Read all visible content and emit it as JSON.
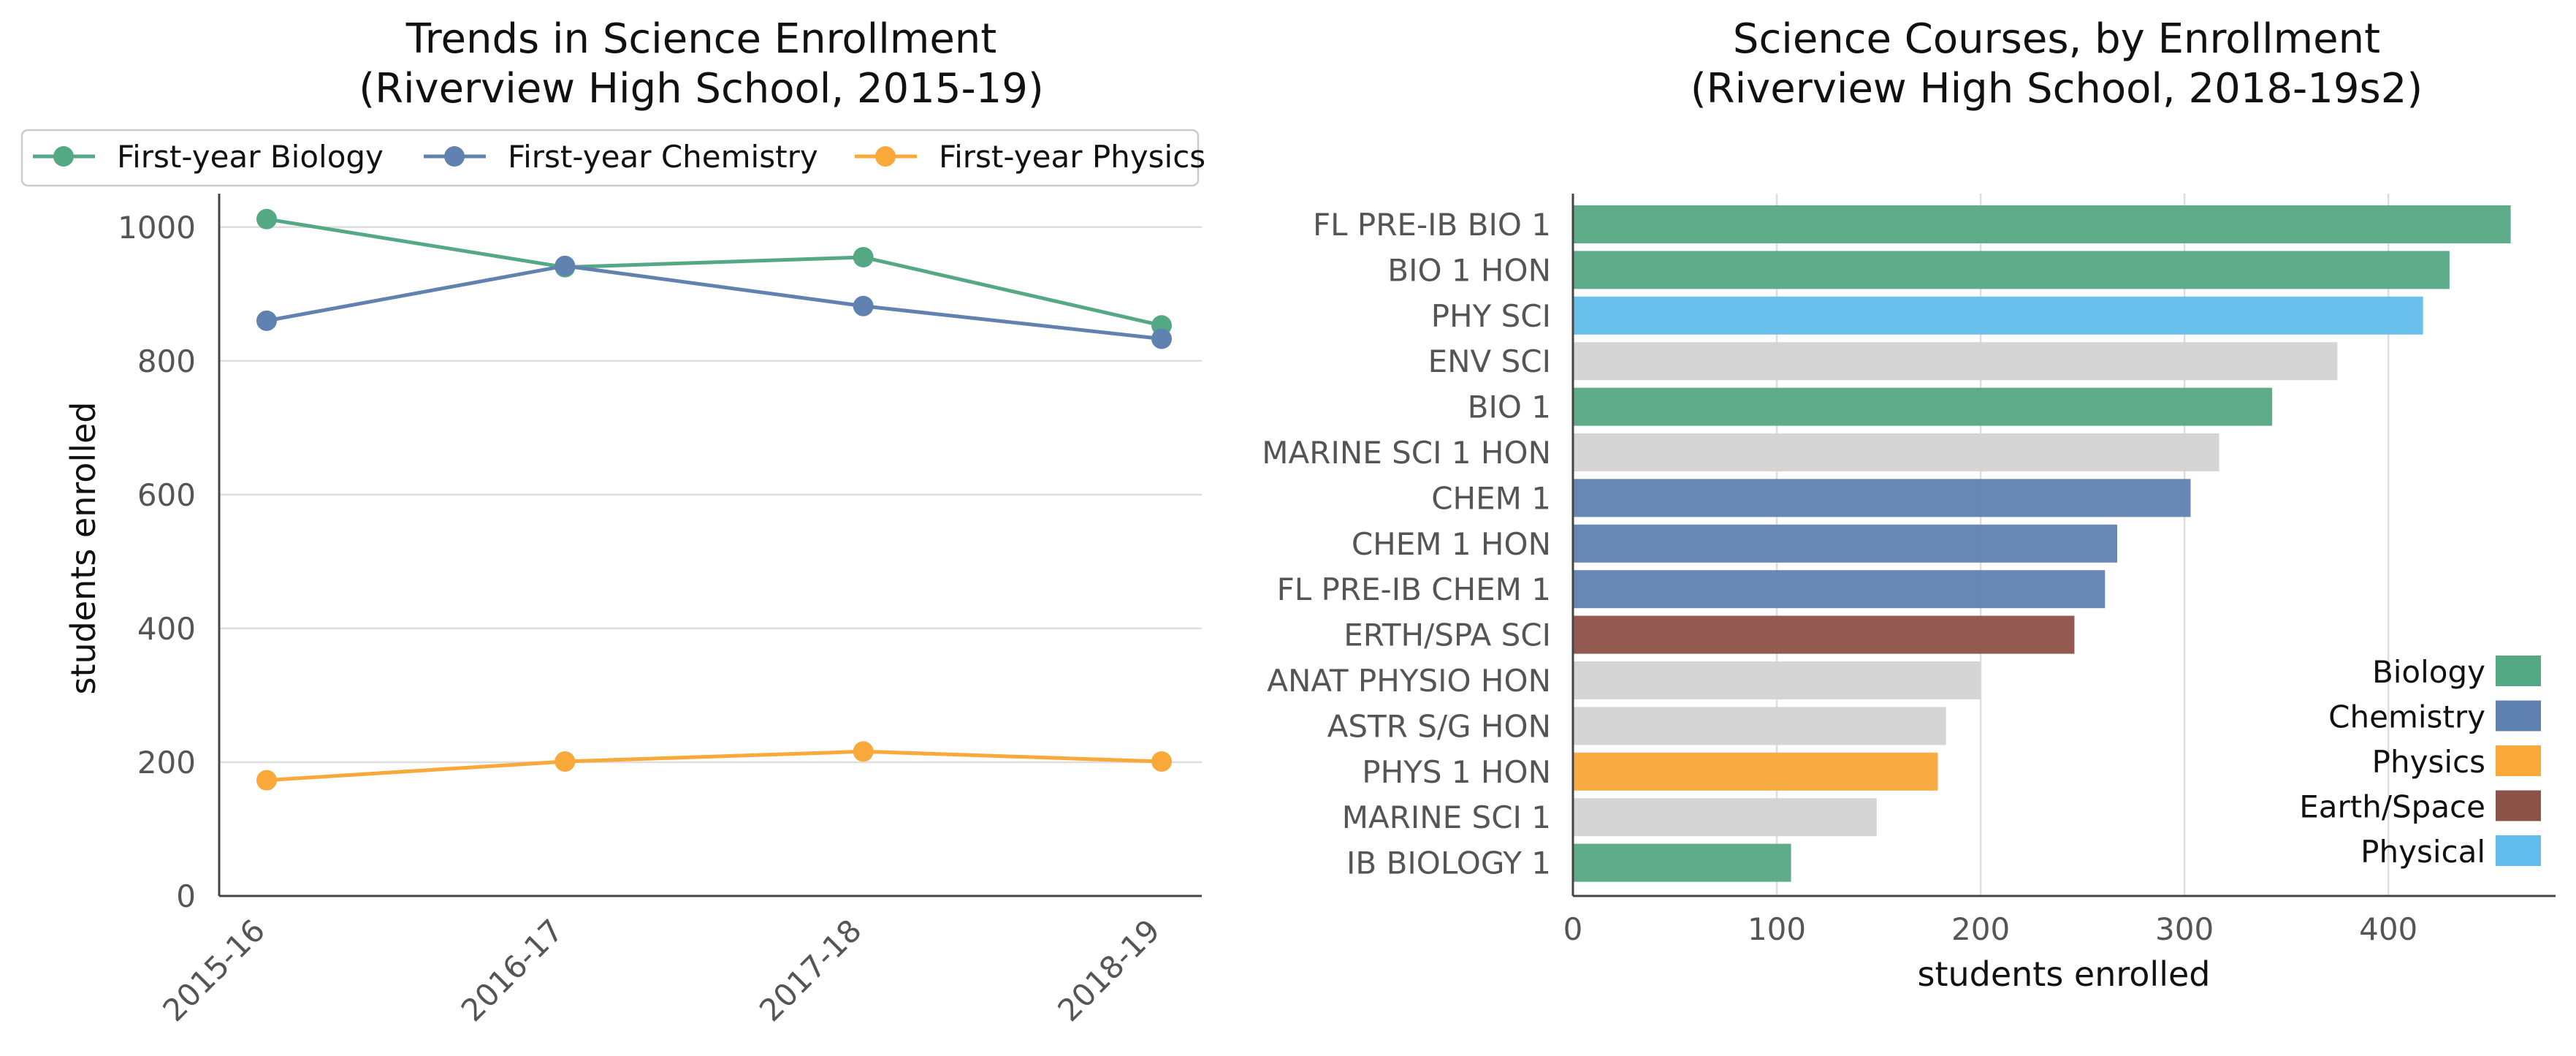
{
  "line_panel": {
    "title_line1": "Trends in Science Enrollment",
    "title_line2": "(Riverview High School, 2015-19)",
    "ylabel": "students enrolled",
    "legend": [
      "First-year Biology",
      "First-year Chemistry",
      "First-year Physics"
    ]
  },
  "bar_panel": {
    "title_line1": "Science Courses, by Enrollment",
    "title_line2": "(Riverview High School, 2018-19s2)",
    "xlabel": "students enrolled",
    "legend": [
      "Biology",
      "Chemistry",
      "Physics",
      "Earth/Space",
      "Physical"
    ]
  },
  "colors": {
    "Biology": "#55a884",
    "Chemistry": "#5f82b1",
    "Physics": "#f9a83a",
    "Earth/Space": "#8c5147",
    "Physical": "#62bdec",
    "Other": "#d3d3d3"
  },
  "chart_data": [
    {
      "type": "line",
      "title": "Trends in Science Enrollment\n(Riverview High School, 2015-19)",
      "xlabel": "",
      "ylabel": "students enrolled",
      "x": [
        "2015-16",
        "2016-17",
        "2017-18",
        "2018-19"
      ],
      "ylim": [
        0,
        1050
      ],
      "yticks": [
        0,
        200,
        400,
        600,
        800,
        1000
      ],
      "grid": "horizontal",
      "legend_position": "top",
      "series": [
        {
          "name": "First-year Biology",
          "color": "#55a884",
          "values": [
            1012,
            940,
            955,
            853
          ]
        },
        {
          "name": "First-year Chemistry",
          "color": "#5f82b1",
          "values": [
            860,
            942,
            882,
            833
          ]
        },
        {
          "name": "First-year Physics",
          "color": "#f9a83a",
          "values": [
            173,
            201,
            216,
            201
          ]
        }
      ]
    },
    {
      "type": "bar",
      "orientation": "horizontal",
      "title": "Science Courses, by Enrollment\n(Riverview High School, 2018-19s2)",
      "xlabel": "students enrolled",
      "ylabel": "",
      "xlim": [
        0,
        482
      ],
      "xticks": [
        0,
        100,
        200,
        300,
        400
      ],
      "grid": "vertical",
      "legend_position": "lower-right",
      "categories": [
        "FL PRE-IB BIO 1",
        "BIO 1 HON",
        "PHY SCI",
        "ENV SCI",
        "BIO 1",
        "MARINE SCI 1 HON",
        "CHEM 1",
        "CHEM 1 HON",
        "FL PRE-IB CHEM 1",
        "ERTH/SPA SCI",
        "ANAT PHYSIO HON",
        "ASTR S/G HON",
        "PHYS 1 HON",
        "MARINE SCI 1",
        "IB BIOLOGY 1"
      ],
      "values": [
        460,
        430,
        417,
        375,
        343,
        317,
        303,
        267,
        261,
        246,
        200,
        183,
        179,
        149,
        107
      ],
      "groups": [
        "Biology",
        "Biology",
        "Physical",
        "Other",
        "Biology",
        "Other",
        "Chemistry",
        "Chemistry",
        "Chemistry",
        "Earth/Space",
        "Other",
        "Other",
        "Physics",
        "Other",
        "Biology"
      ]
    }
  ]
}
